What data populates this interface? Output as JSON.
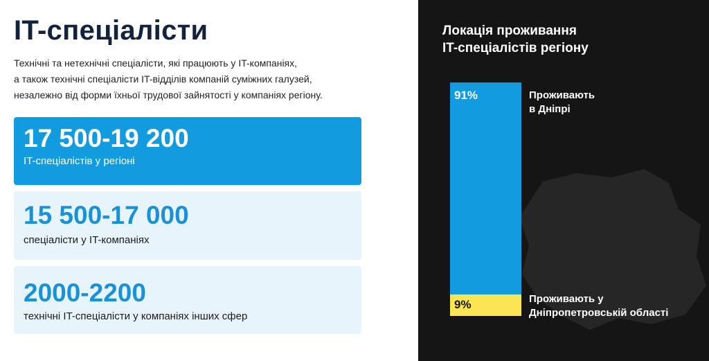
{
  "left": {
    "title": "IT-спеціалісти",
    "description": [
      "Технічні та нетехнічні спеціалісти, які працюють у IT-компаніях,",
      "а також технічні спеціалісти IT-відділів компаній суміжних галузей,",
      "незалежно від форми їхньої трудової зайнятості у компаніях регіону."
    ],
    "cards": [
      {
        "value": "17 500-19 200",
        "label": "IT-спеціалістів у регіоні"
      },
      {
        "value": "15 500-17 000",
        "label": "спеціалісти у IT-компаніях"
      },
      {
        "value": "2000-2200",
        "label": "технічні IT-спеціалісти у компаніях інших сфер"
      }
    ]
  },
  "right": {
    "title": [
      "Локація проживання",
      "IT-спеціалістів регіону"
    ],
    "segments": [
      {
        "pct": "91%",
        "value": 91,
        "caption": [
          "Проживають",
          "в Дніпрі"
        ]
      },
      {
        "pct": "9%",
        "value": 9,
        "caption": [
          "Проживають у",
          "Дніпропетровській області"
        ]
      }
    ],
    "map_icon": "region-map-silhouette"
  },
  "colors": {
    "accent_blue": "#129bdf",
    "light_blue": "#e8f4fc",
    "yellow": "#fbe552",
    "dark_bg": "#151515",
    "title_dark": "#14233c"
  }
}
